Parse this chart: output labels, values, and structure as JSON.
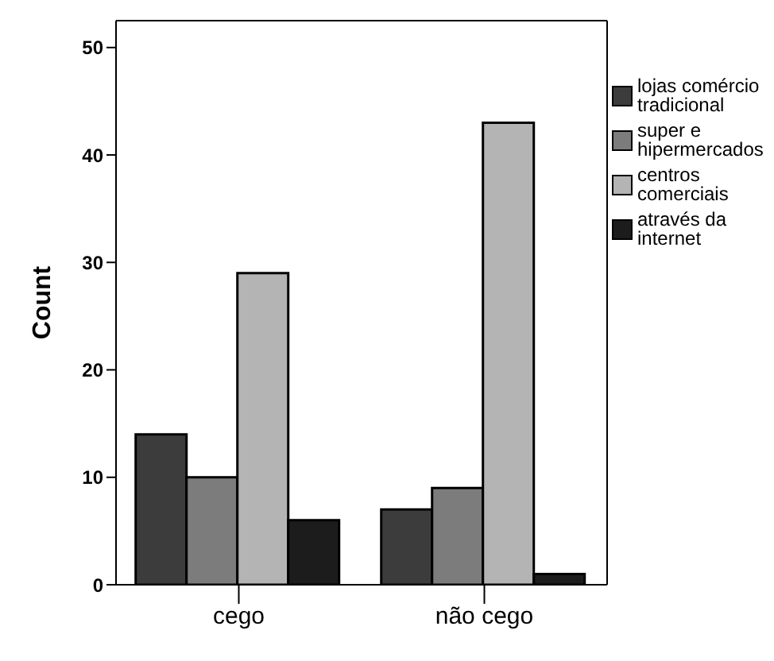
{
  "chart_data": {
    "type": "bar",
    "ylabel": "Count",
    "categories": [
      "cego",
      "não cego"
    ],
    "series": [
      {
        "name": "lojas comércio tradicional",
        "color": "#3c3c3c",
        "values": [
          14,
          7
        ]
      },
      {
        "name": "super e hipermercados",
        "color": "#7c7c7c",
        "values": [
          10,
          9
        ]
      },
      {
        "name": "centros comerciais",
        "color": "#b4b4b4",
        "values": [
          29,
          43
        ]
      },
      {
        "name": "através da internet",
        "color": "#1c1c1c",
        "values": [
          6,
          1
        ]
      }
    ],
    "ylim": [
      0,
      52.5
    ],
    "yticks": [
      0,
      10,
      20,
      30,
      40,
      50
    ],
    "grid": false,
    "legend": "right"
  }
}
